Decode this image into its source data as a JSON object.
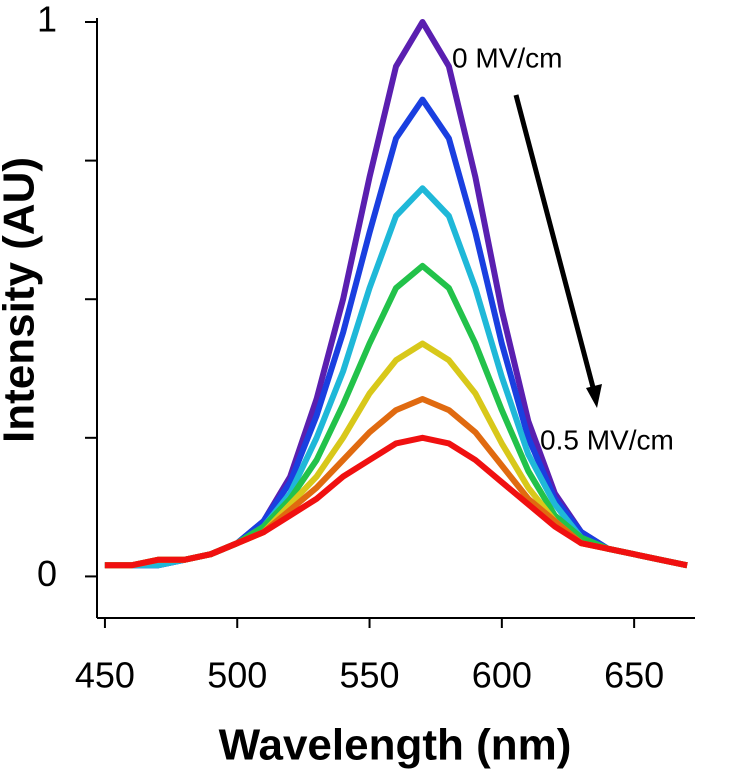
{
  "chart_data": {
    "type": "line",
    "xlabel": "Wavelength (nm)",
    "ylabel": "Intensity (AU)",
    "x": [
      450,
      460,
      470,
      480,
      490,
      500,
      510,
      520,
      530,
      540,
      550,
      560,
      570,
      580,
      590,
      600,
      610,
      620,
      630,
      640,
      650,
      660,
      670
    ],
    "series": [
      {
        "color": "#5a1fb0",
        "values": [
          0.02,
          0.02,
          0.02,
          0.03,
          0.04,
          0.06,
          0.1,
          0.18,
          0.32,
          0.5,
          0.72,
          0.92,
          1.0,
          0.92,
          0.72,
          0.48,
          0.28,
          0.15,
          0.08,
          0.05,
          0.04,
          0.03,
          0.02
        ]
      },
      {
        "color": "#1a3fe0",
        "values": [
          0.02,
          0.02,
          0.02,
          0.03,
          0.04,
          0.06,
          0.1,
          0.17,
          0.29,
          0.44,
          0.62,
          0.79,
          0.86,
          0.79,
          0.62,
          0.42,
          0.25,
          0.14,
          0.08,
          0.05,
          0.04,
          0.03,
          0.02
        ]
      },
      {
        "color": "#1fb8d8",
        "values": [
          0.02,
          0.02,
          0.02,
          0.03,
          0.04,
          0.06,
          0.09,
          0.15,
          0.25,
          0.37,
          0.52,
          0.65,
          0.7,
          0.65,
          0.52,
          0.36,
          0.22,
          0.13,
          0.07,
          0.05,
          0.04,
          0.03,
          0.02
        ]
      },
      {
        "color": "#22c24a",
        "values": [
          0.02,
          0.02,
          0.03,
          0.03,
          0.04,
          0.06,
          0.09,
          0.14,
          0.21,
          0.31,
          0.42,
          0.52,
          0.56,
          0.52,
          0.42,
          0.3,
          0.19,
          0.11,
          0.07,
          0.05,
          0.04,
          0.03,
          0.02
        ]
      },
      {
        "color": "#d8c81a",
        "values": [
          0.02,
          0.02,
          0.03,
          0.03,
          0.04,
          0.06,
          0.08,
          0.13,
          0.18,
          0.25,
          0.33,
          0.39,
          0.42,
          0.39,
          0.33,
          0.24,
          0.16,
          0.1,
          0.06,
          0.05,
          0.04,
          0.03,
          0.02
        ]
      },
      {
        "color": "#e06a10",
        "values": [
          0.02,
          0.02,
          0.03,
          0.03,
          0.04,
          0.06,
          0.08,
          0.12,
          0.16,
          0.21,
          0.26,
          0.3,
          0.32,
          0.3,
          0.26,
          0.2,
          0.14,
          0.1,
          0.06,
          0.05,
          0.04,
          0.03,
          0.02
        ]
      },
      {
        "color": "#f01010",
        "values": [
          0.02,
          0.02,
          0.03,
          0.03,
          0.04,
          0.06,
          0.08,
          0.11,
          0.14,
          0.18,
          0.21,
          0.24,
          0.25,
          0.24,
          0.21,
          0.17,
          0.13,
          0.09,
          0.06,
          0.05,
          0.04,
          0.03,
          0.02
        ]
      }
    ],
    "xlim": [
      447,
      673
    ],
    "xticks": [
      450,
      500,
      550,
      600,
      650
    ],
    "ylim": [
      -0.075,
      1.0
    ],
    "yticks": [
      0,
      1
    ],
    "yminorticks": [
      0.25,
      0.5,
      0.75
    ],
    "annotations": [
      {
        "text": "0 MV/cm"
      },
      {
        "text": "0.5 MV/cm"
      }
    ]
  }
}
